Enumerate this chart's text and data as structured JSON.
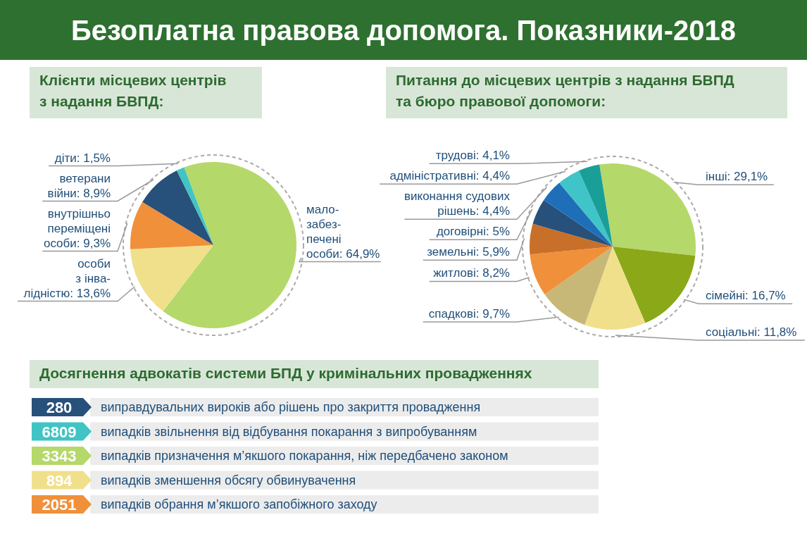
{
  "chart_data": [
    {
      "type": "pie",
      "title": "Безоплатна правова допомога. Показники-2018",
      "subtitle": "Клієнти місцевих центрів\nз надання БВПД:",
      "categories": [
        "мало-\nзабез-\nпечені\nособи",
        "особи\nз інва-\nлідністю",
        "внутрішньо\nпереміщені\nособи",
        "ветерани\nвійни",
        "діти"
      ],
      "values": [
        64.9,
        13.6,
        9.3,
        8.9,
        1.5
      ],
      "value_labels": [
        "64,9%",
        "13,6%",
        "9,3%",
        "8,9%",
        "1,5%"
      ],
      "colors": [
        "#b5d86a",
        "#f0e08c",
        "#f0903a",
        "#27507a",
        "#40c4c4"
      ]
    },
    {
      "type": "pie",
      "title": "Питання до місцевих центрів з надання БВПД\nта бюро правової допомоги:",
      "categories": [
        "інші",
        "сімейні",
        "соціальні",
        "спадкові",
        "житлові",
        "земельні",
        "договірні",
        "виконання судових\nрішень",
        "адміністративні",
        "трудові"
      ],
      "values": [
        29.1,
        16.7,
        11.8,
        9.7,
        8.2,
        5.9,
        5,
        4.4,
        4.4,
        4.1
      ],
      "value_labels": [
        "29,1%",
        "16,7%",
        "11,8%",
        "9,7%",
        "8,2%",
        "5,9%",
        "5%",
        "4,4%",
        "4,4%",
        "4,1%"
      ],
      "colors": [
        "#b5d86a",
        "#8aa818",
        "#f0e08c",
        "#c8b878",
        "#f0903a",
        "#c8702a",
        "#27507a",
        "#1e6fb8",
        "#40c4c8",
        "#1a9e98"
      ]
    },
    {
      "type": "other",
      "title": "Досягнення адвокатів системи БПД у кримінальних провадженнях",
      "categories": [
        "виправдувальних вироків або рішень про закриття провадження",
        "випадків звільнення від відбування покарання з випробуванням",
        "випадків призначення м’якшого покарання, ніж передбачено законом",
        "випадків зменшення обсягу обвинувачення",
        "випадків обрання м’якшого запобіжного заходу"
      ],
      "values": [
        280,
        6809,
        3343,
        894,
        2051
      ],
      "data_labels": true,
      "colors": [
        "#27507a",
        "#40c4c4",
        "#b5d86a",
        "#f0e08c",
        "#f0903a"
      ]
    }
  ]
}
